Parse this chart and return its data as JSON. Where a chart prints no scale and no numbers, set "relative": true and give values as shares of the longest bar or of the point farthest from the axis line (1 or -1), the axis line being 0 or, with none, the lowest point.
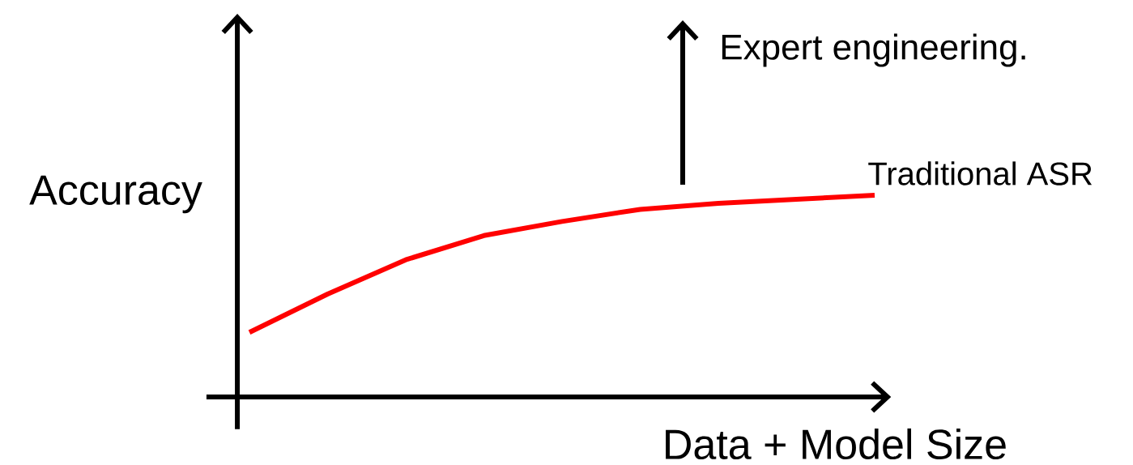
{
  "chart_data": {
    "type": "line",
    "relative": true,
    "xlabel": "Data + Model Size",
    "ylabel": "Accuracy",
    "categories": [
      null,
      null,
      null,
      null,
      null,
      null,
      null,
      null,
      null
    ],
    "series": [
      {
        "name": "Traditional ASR",
        "color": "#ff0000",
        "values": [
          0.32,
          0.51,
          0.68,
          0.8,
          0.87,
          0.93,
          0.96,
          0.98,
          1
        ]
      }
    ],
    "annotations": [
      "Expert engineering."
    ]
  }
}
